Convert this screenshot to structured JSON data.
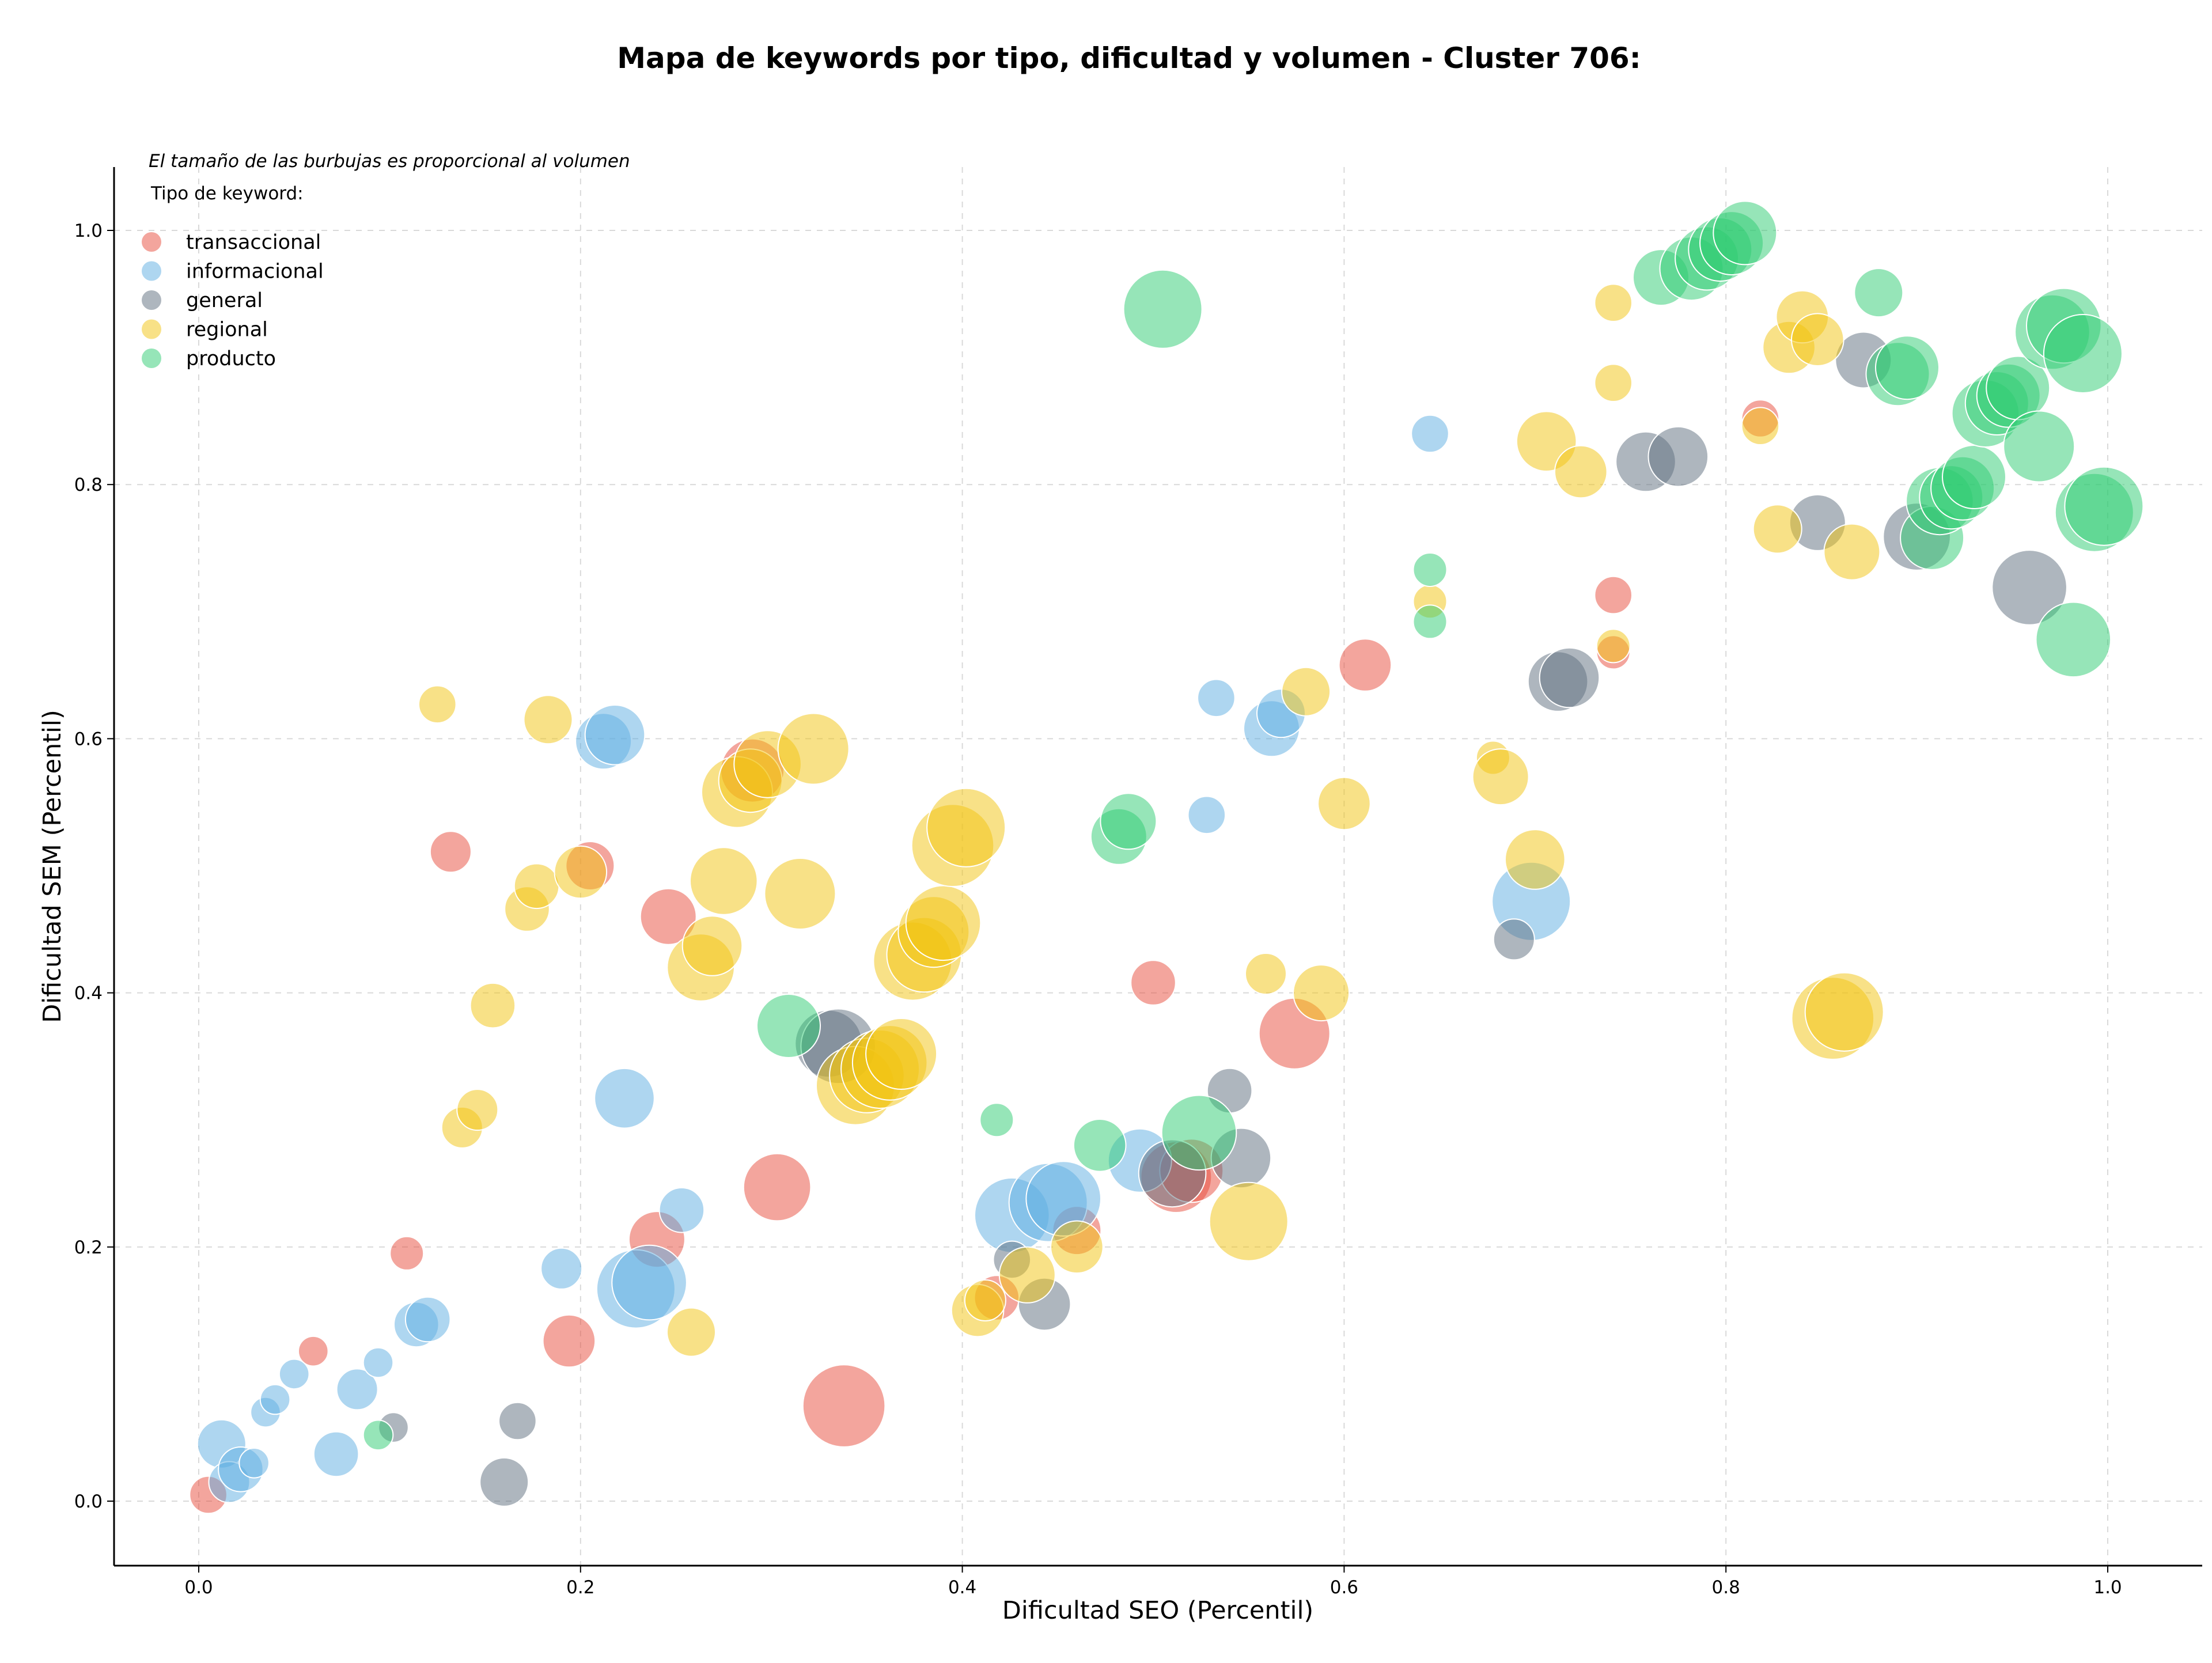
{
  "chart_data": {
    "type": "scatter",
    "title": "Mapa de keywords por tipo, dificultad y volumen - Cluster 706:",
    "xlabel": "Dificultad SEO (Percentil)",
    "ylabel": "Dificultad SEM (Percentil)",
    "xlim": [
      -0.04,
      1.05
    ],
    "ylim": [
      -0.04,
      1.05
    ],
    "x_ticks": [
      "0.0",
      "0.2",
      "0.4",
      "0.6",
      "0.8",
      "1.0"
    ],
    "y_ticks": [
      "0.0",
      "0.2",
      "0.4",
      "0.6",
      "0.8",
      "1.0"
    ],
    "grid": true,
    "annotation": "El tamaño de las burbujas es proporcional al volumen",
    "legend": {
      "title": "Tipo de keyword:",
      "placement": "top-left"
    },
    "series": [
      {
        "name": "transaccional",
        "color": "#e74c3c",
        "points": [
          [
            0.005,
            0.005,
            5
          ],
          [
            0.06,
            0.118,
            3
          ],
          [
            0.109,
            0.195,
            4
          ],
          [
            0.132,
            0.511,
            6
          ],
          [
            0.194,
            0.126,
            9
          ],
          [
            0.205,
            0.5,
            8
          ],
          [
            0.24,
            0.206,
            10
          ],
          [
            0.246,
            0.46,
            10
          ],
          [
            0.303,
            0.247,
            13
          ],
          [
            0.29,
            0.575,
            12
          ],
          [
            0.338,
            0.075,
            17
          ],
          [
            0.418,
            0.16,
            7
          ],
          [
            0.46,
            0.213,
            8
          ],
          [
            0.5,
            0.408,
            7
          ],
          [
            0.512,
            0.255,
            14
          ],
          [
            0.52,
            0.26,
            12
          ],
          [
            0.574,
            0.368,
            14
          ],
          [
            0.611,
            0.658,
            9
          ],
          [
            0.741,
            0.713,
            5
          ],
          [
            0.741,
            0.668,
            4
          ],
          [
            0.818,
            0.852,
            5
          ]
        ]
      },
      {
        "name": "informacional",
        "color": "#5dade2",
        "points": [
          [
            0.012,
            0.045,
            8
          ],
          [
            0.016,
            0.015,
            6
          ],
          [
            0.022,
            0.025,
            7
          ],
          [
            0.029,
            0.03,
            3
          ],
          [
            0.035,
            0.07,
            3
          ],
          [
            0.04,
            0.08,
            3
          ],
          [
            0.05,
            0.1,
            3
          ],
          [
            0.072,
            0.037,
            7
          ],
          [
            0.083,
            0.088,
            6
          ],
          [
            0.094,
            0.109,
            3
          ],
          [
            0.114,
            0.139,
            7
          ],
          [
            0.12,
            0.143,
            7
          ],
          [
            0.19,
            0.183,
            6
          ],
          [
            0.212,
            0.598,
            10
          ],
          [
            0.218,
            0.603,
            11
          ],
          [
            0.223,
            0.317,
            11
          ],
          [
            0.229,
            0.167,
            16
          ],
          [
            0.236,
            0.172,
            15
          ],
          [
            0.253,
            0.229,
            7
          ],
          [
            0.426,
            0.225,
            15
          ],
          [
            0.445,
            0.235,
            16
          ],
          [
            0.453,
            0.238,
            15
          ],
          [
            0.493,
            0.268,
            12
          ],
          [
            0.528,
            0.54,
            5
          ],
          [
            0.533,
            0.632,
            5
          ],
          [
            0.562,
            0.608,
            10
          ],
          [
            0.567,
            0.62,
            8
          ],
          [
            0.645,
            0.84,
            5
          ],
          [
            0.698,
            0.472,
            16
          ]
        ]
      },
      {
        "name": "general",
        "color": "#5d6d7e",
        "points": [
          [
            0.102,
            0.058,
            3
          ],
          [
            0.16,
            0.015,
            8
          ],
          [
            0.167,
            0.063,
            5
          ],
          [
            0.33,
            0.36,
            13
          ],
          [
            0.335,
            0.358,
            15
          ],
          [
            0.426,
            0.19,
            5
          ],
          [
            0.443,
            0.155,
            9
          ],
          [
            0.51,
            0.258,
            13
          ],
          [
            0.54,
            0.323,
            7
          ],
          [
            0.546,
            0.27,
            11
          ],
          [
            0.689,
            0.442,
            6
          ],
          [
            0.712,
            0.645,
            11
          ],
          [
            0.718,
            0.648,
            11
          ],
          [
            0.758,
            0.818,
            11
          ],
          [
            0.775,
            0.822,
            11
          ],
          [
            0.848,
            0.77,
            10
          ],
          [
            0.872,
            0.898,
            10
          ],
          [
            0.9,
            0.759,
            13
          ],
          [
            0.959,
            0.719,
            15
          ]
        ]
      },
      {
        "name": "regional",
        "color": "#f1c40f",
        "points": [
          [
            0.125,
            0.627,
            5
          ],
          [
            0.138,
            0.294,
            6
          ],
          [
            0.146,
            0.308,
            6
          ],
          [
            0.154,
            0.39,
            7
          ],
          [
            0.172,
            0.466,
            7
          ],
          [
            0.177,
            0.484,
            7
          ],
          [
            0.183,
            0.615,
            8
          ],
          [
            0.2,
            0.495,
            9
          ],
          [
            0.258,
            0.133,
            8
          ],
          [
            0.263,
            0.42,
            13
          ],
          [
            0.269,
            0.437,
            11
          ],
          [
            0.275,
            0.488,
            13
          ],
          [
            0.282,
            0.558,
            14
          ],
          [
            0.289,
            0.567,
            12
          ],
          [
            0.298,
            0.58,
            13
          ],
          [
            0.315,
            0.478,
            14
          ],
          [
            0.322,
            0.592,
            14
          ],
          [
            0.344,
            0.327,
            16
          ],
          [
            0.35,
            0.335,
            15
          ],
          [
            0.357,
            0.34,
            16
          ],
          [
            0.362,
            0.345,
            15
          ],
          [
            0.368,
            0.352,
            14
          ],
          [
            0.374,
            0.425,
            16
          ],
          [
            0.38,
            0.43,
            15
          ],
          [
            0.385,
            0.448,
            14
          ],
          [
            0.39,
            0.455,
            15
          ],
          [
            0.395,
            0.516,
            17
          ],
          [
            0.402,
            0.53,
            16
          ],
          [
            0.408,
            0.15,
            9
          ],
          [
            0.412,
            0.158,
            6
          ],
          [
            0.434,
            0.178,
            10
          ],
          [
            0.46,
            0.2,
            9
          ],
          [
            0.55,
            0.22,
            16
          ],
          [
            0.559,
            0.415,
            6
          ],
          [
            0.58,
            0.637,
            8
          ],
          [
            0.588,
            0.4,
            10
          ],
          [
            0.6,
            0.549,
            9
          ],
          [
            0.645,
            0.708,
            4
          ],
          [
            0.678,
            0.585,
            4
          ],
          [
            0.682,
            0.57,
            10
          ],
          [
            0.7,
            0.505,
            11
          ],
          [
            0.706,
            0.834,
            11
          ],
          [
            0.724,
            0.81,
            9
          ],
          [
            0.741,
            0.943,
            5
          ],
          [
            0.741,
            0.88,
            5
          ],
          [
            0.741,
            0.673,
            4
          ],
          [
            0.818,
            0.846,
            5
          ],
          [
            0.827,
            0.765,
            8
          ],
          [
            0.833,
            0.908,
            9
          ],
          [
            0.84,
            0.932,
            9
          ],
          [
            0.848,
            0.914,
            9
          ],
          [
            0.856,
            0.38,
            17
          ],
          [
            0.862,
            0.385,
            16
          ],
          [
            0.866,
            0.747,
            10
          ]
        ]
      },
      {
        "name": "producto",
        "color": "#2ecc71",
        "points": [
          [
            0.094,
            0.052,
            3
          ],
          [
            0.309,
            0.374,
            12
          ],
          [
            0.418,
            0.3,
            4
          ],
          [
            0.472,
            0.28,
            9
          ],
          [
            0.482,
            0.523,
            10
          ],
          [
            0.487,
            0.535,
            10
          ],
          [
            0.505,
            0.938,
            16
          ],
          [
            0.524,
            0.29,
            15
          ],
          [
            0.645,
            0.733,
            4
          ],
          [
            0.645,
            0.692,
            4
          ],
          [
            0.766,
            0.963,
            10
          ],
          [
            0.782,
            0.97,
            12
          ],
          [
            0.79,
            0.978,
            12
          ],
          [
            0.797,
            0.985,
            12
          ],
          [
            0.803,
            0.99,
            12
          ],
          [
            0.81,
            0.998,
            12
          ],
          [
            0.88,
            0.951,
            8
          ],
          [
            0.89,
            0.887,
            12
          ],
          [
            0.895,
            0.892,
            12
          ],
          [
            0.908,
            0.758,
            12
          ],
          [
            0.912,
            0.787,
            13
          ],
          [
            0.918,
            0.79,
            12
          ],
          [
            0.924,
            0.797,
            12
          ],
          [
            0.93,
            0.806,
            12
          ],
          [
            0.936,
            0.856,
            13
          ],
          [
            0.942,
            0.864,
            12
          ],
          [
            0.948,
            0.87,
            12
          ],
          [
            0.953,
            0.876,
            12
          ],
          [
            0.964,
            0.83,
            14
          ],
          [
            0.971,
            0.92,
            15
          ],
          [
            0.977,
            0.925,
            15
          ],
          [
            0.982,
            0.678,
            15
          ],
          [
            0.987,
            0.903,
            16
          ],
          [
            0.993,
            0.778,
            16
          ],
          [
            0.998,
            0.783,
            16
          ]
        ]
      }
    ]
  }
}
